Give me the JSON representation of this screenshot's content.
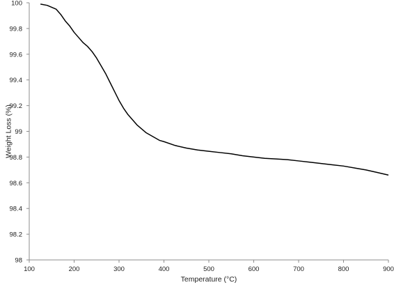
{
  "chart_data": {
    "type": "line",
    "xlabel": "Temperature (°C)",
    "ylabel": "Weight Loss (%)",
    "xlim": [
      100,
      900
    ],
    "ylim": [
      98,
      100
    ],
    "xticks": [
      100,
      200,
      300,
      400,
      500,
      600,
      700,
      800,
      900
    ],
    "yticks": [
      98,
      98.2,
      98.4,
      98.6,
      98.8,
      99,
      99.2,
      99.4,
      99.6,
      99.8,
      100
    ],
    "ytick_labels": [
      "98",
      "98.2",
      "98.4",
      "98.6",
      "98.8",
      "99",
      "99.2",
      "99.4",
      "99.6",
      "99.8",
      "100"
    ],
    "grid": false,
    "series": [
      {
        "x": [
          125,
          140,
          160,
          170,
          180,
          190,
          200,
          210,
          220,
          230,
          240,
          250,
          260,
          270,
          280,
          290,
          300,
          310,
          320,
          330,
          340,
          350,
          360,
          375,
          390,
          400,
          425,
          450,
          475,
          500,
          525,
          550,
          575,
          600,
          625,
          650,
          675,
          700,
          725,
          750,
          775,
          800,
          825,
          850,
          875,
          900
        ],
        "y": [
          99.99,
          99.98,
          99.95,
          99.91,
          99.86,
          99.82,
          99.77,
          99.73,
          99.69,
          99.66,
          99.62,
          99.57,
          99.51,
          99.45,
          99.38,
          99.31,
          99.24,
          99.18,
          99.13,
          99.09,
          99.05,
          99.02,
          98.99,
          98.96,
          98.93,
          98.92,
          98.89,
          98.87,
          98.855,
          98.845,
          98.835,
          98.825,
          98.81,
          98.8,
          98.79,
          98.785,
          98.78,
          98.77,
          98.76,
          98.75,
          98.74,
          98.73,
          98.715,
          98.7,
          98.68,
          98.66
        ]
      }
    ]
  }
}
